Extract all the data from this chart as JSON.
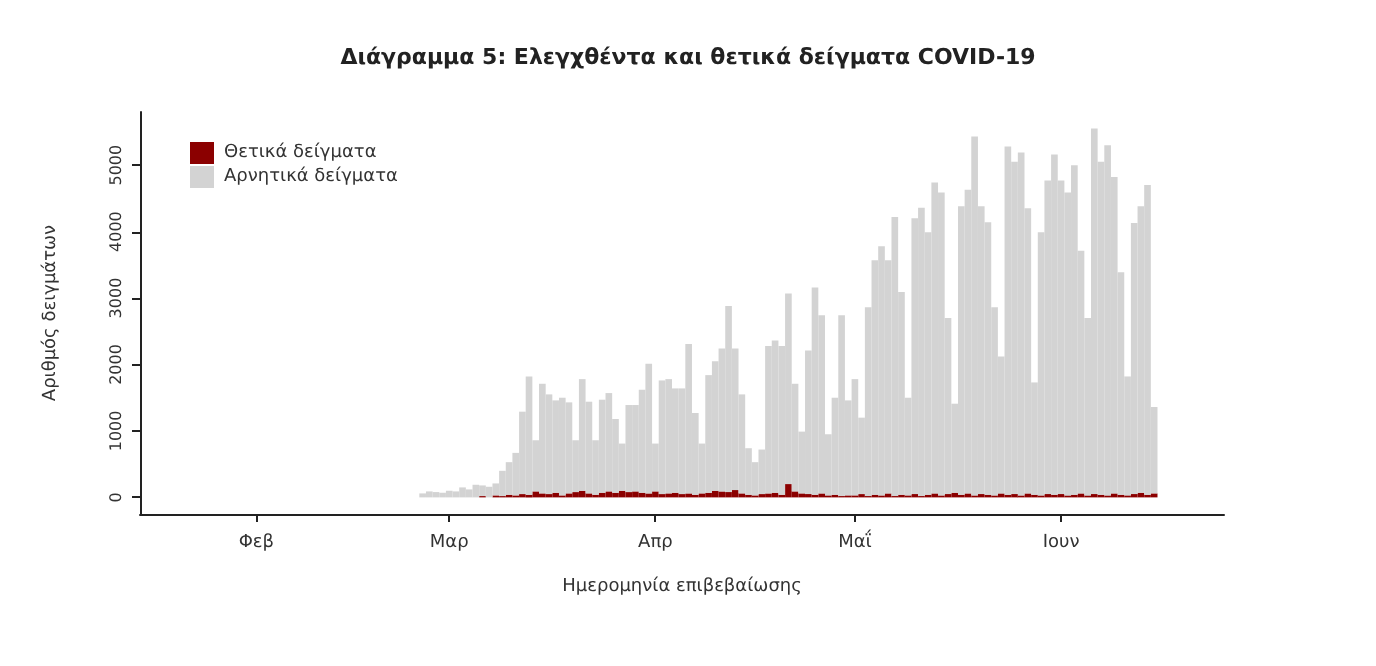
{
  "chart_data": {
    "type": "bar",
    "stacked": true,
    "title": "Διάγραμμα 5: Ελεγχθέντα και θετικά δείγματα COVID-19",
    "xlabel": "Ημερομηνία επιβεβαίωσης",
    "ylabel": "Αριθμός δειγμάτων",
    "categories": [
      null,
      null,
      null,
      null,
      null,
      null,
      null,
      null,
      null,
      null,
      null,
      null,
      null,
      null,
      null,
      null,
      null,
      "Φεβ",
      null,
      null,
      null,
      null,
      null,
      null,
      null,
      null,
      null,
      null,
      null,
      null,
      null,
      null,
      null,
      null,
      null,
      null,
      null,
      null,
      null,
      null,
      null,
      null,
      null,
      null,
      null,
      null,
      "Μαρ",
      null,
      null,
      null,
      null,
      null,
      null,
      null,
      null,
      null,
      null,
      null,
      null,
      null,
      null,
      null,
      null,
      null,
      null,
      null,
      null,
      null,
      null,
      null,
      null,
      null,
      null,
      null,
      null,
      null,
      null,
      "Απρ",
      null,
      null,
      null,
      null,
      null,
      null,
      null,
      null,
      null,
      null,
      null,
      null,
      null,
      null,
      null,
      null,
      null,
      null,
      null,
      null,
      null,
      null,
      null,
      null,
      null,
      null,
      null,
      null,
      null,
      "Μαΐ",
      null,
      null,
      null,
      null,
      null,
      null,
      null,
      null,
      null,
      null,
      null,
      null,
      null,
      null,
      null,
      null,
      null,
      null,
      null,
      null,
      null,
      null,
      null,
      null,
      null,
      null,
      null,
      null,
      null,
      null,
      "Ιουν",
      null,
      null,
      null,
      null,
      null,
      null,
      null,
      null,
      null,
      null,
      null,
      null,
      null,
      null,
      null,
      null,
      null,
      null,
      null,
      null,
      null,
      null,
      null,
      null
    ],
    "series": [
      {
        "name": "Θετικά δείγματα",
        "color": "#8b0000",
        "values": [
          null,
          null,
          null,
          null,
          null,
          null,
          null,
          null,
          null,
          null,
          null,
          null,
          null,
          null,
          null,
          null,
          null,
          null,
          null,
          null,
          null,
          null,
          null,
          null,
          null,
          null,
          null,
          null,
          null,
          null,
          null,
          null,
          null,
          null,
          null,
          null,
          null,
          null,
          null,
          null,
          null,
          null,
          0,
          0,
          0,
          0,
          0,
          0,
          0,
          0,
          null,
          20,
          null,
          30,
          20,
          40,
          30,
          50,
          40,
          90,
          60,
          50,
          70,
          30,
          60,
          80,
          100,
          60,
          40,
          70,
          90,
          70,
          100,
          80,
          90,
          70,
          60,
          90,
          50,
          60,
          70,
          50,
          60,
          40,
          60,
          70,
          100,
          90,
          80,
          110,
          60,
          40,
          30,
          50,
          60,
          70,
          40,
          200,
          90,
          60,
          50,
          40,
          60,
          30,
          40,
          20,
          30,
          30,
          50,
          20,
          40,
          30,
          60,
          20,
          40,
          30,
          50,
          20,
          40,
          60,
          30,
          50,
          70,
          40,
          60,
          30,
          50,
          40,
          30,
          60,
          40,
          50,
          30,
          60,
          40,
          30,
          50,
          40,
          50,
          30,
          40,
          60,
          30,
          50,
          40,
          30,
          60,
          40,
          30,
          50,
          70,
          40,
          60,
          null,
          null,
          null,
          null,
          null,
          null,
          null,
          null,
          null,
          null
        ]
      },
      {
        "name": "Αρνητικά δείγματα",
        "color": "#d3d3d3",
        "values": [
          null,
          null,
          null,
          null,
          null,
          null,
          null,
          null,
          null,
          null,
          null,
          null,
          null,
          null,
          null,
          null,
          null,
          null,
          null,
          null,
          null,
          null,
          null,
          null,
          null,
          null,
          null,
          null,
          null,
          null,
          null,
          null,
          null,
          null,
          null,
          null,
          null,
          null,
          null,
          null,
          null,
          null,
          60,
          90,
          80,
          70,
          100,
          90,
          150,
          120,
          190,
          160,
          160,
          180,
          380,
          490,
          640,
          1240,
          1780,
          770,
          1650,
          1500,
          1390,
          1470,
          1370,
          780,
          1680,
          1380,
          820,
          1400,
          1480,
          1110,
          710,
          1310,
          1300,
          1550,
          1950,
          720,
          1710,
          1720,
          1570,
          1590,
          2250,
          1230,
          750,
          1770,
          1950,
          2150,
          2800,
          2130,
          1490,
          700,
          500,
          670,
          2220,
          2290,
          2240,
          2870,
          1620,
          930,
          2160,
          3120,
          2680,
          920,
          1460,
          2720,
          1430,
          1750,
          1150,
          2840,
          3530,
          3750,
          3510,
          4200,
          3050,
          1470,
          4150,
          4340,
          3950,
          4680,
          4560,
          2650,
          1340,
          4340,
          4570,
          5400,
          4330,
          4100,
          2830,
          2060,
          5240,
          5000,
          5160,
          4290,
          1690,
          3960,
          4720,
          5120,
          4720,
          4560,
          4960,
          3650,
          2670,
          5500,
          5010,
          5270,
          4760,
          3350,
          1790,
          4080,
          4310,
          4660,
          1300,
          null,
          null,
          null,
          null,
          null,
          null,
          null,
          null,
          null,
          null
        ]
      }
    ],
    "ylim": [
      -250,
      5800
    ],
    "yticks": [
      0,
      1000,
      2000,
      3000,
      4000,
      5000
    ],
    "grid": false,
    "legend": "top left"
  }
}
